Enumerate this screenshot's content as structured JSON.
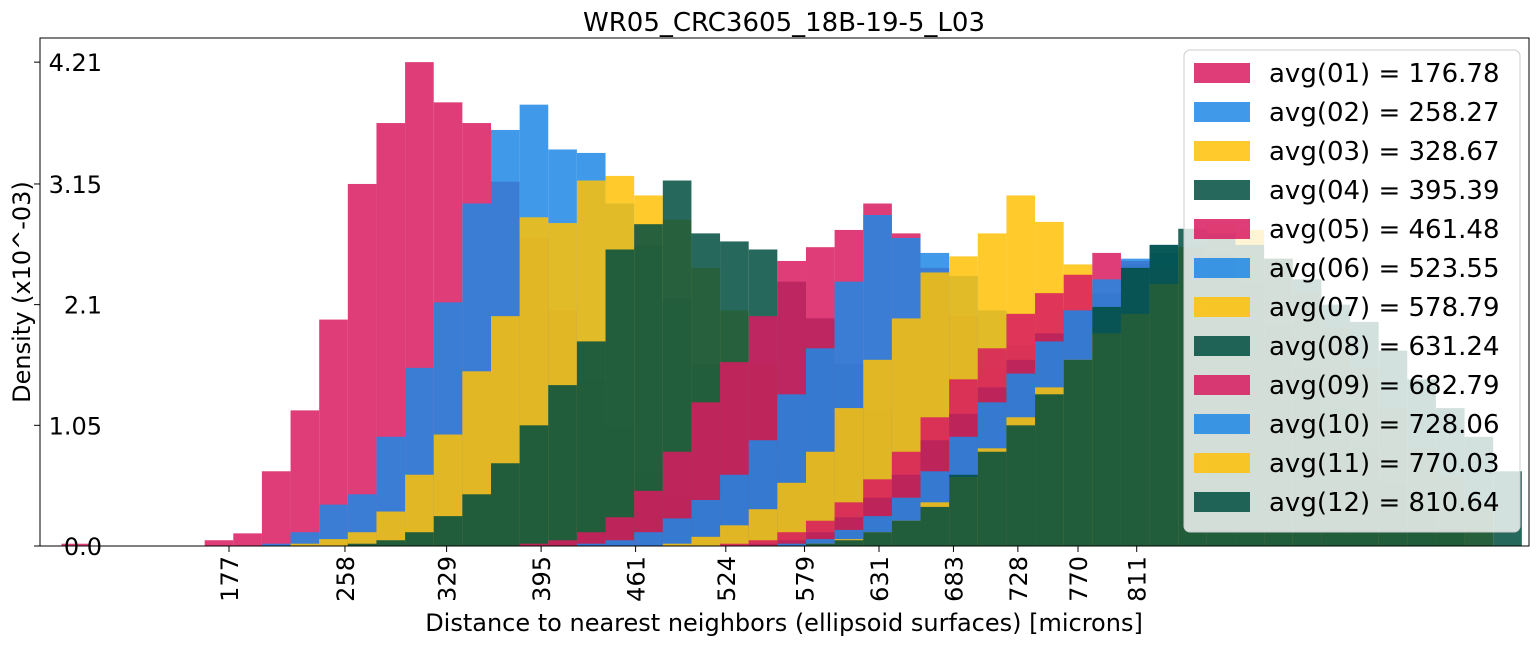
{
  "chart_data": {
    "type": "histogram",
    "title": "WR05_CRC3605_18B-19-5_L03",
    "xlabel": "Distance to nearest neighbors (ellipsoid surfaces) [microns]",
    "ylabel": "Density (x10^-03)",
    "ylim": [
      0,
      4.42
    ],
    "xlim": [
      45,
      1085
    ],
    "y_ticks": [
      0.0,
      1.05,
      2.1,
      3.15,
      4.21
    ],
    "y_tick_labels": [
      "0.0",
      "1.05",
      "2.1",
      "3.15",
      "4.21"
    ],
    "x_ticks": [
      177,
      258,
      329,
      395,
      461,
      524,
      579,
      631,
      683,
      728,
      770,
      811
    ],
    "x_tick_labels": [
      "177",
      "258",
      "329",
      "395",
      "461",
      "524",
      "579",
      "631",
      "683",
      "728",
      "770",
      "811"
    ],
    "bin_width": 20,
    "grid": false,
    "legend_position": "upper right",
    "colors": [
      "#d81b60",
      "#1e88e5",
      "#ffc107",
      "#004d40"
    ],
    "series": [
      {
        "name": "avg(01) = 176.78",
        "color": "#d81b60",
        "bins": [
          [
            60,
            0.02
          ],
          [
            160,
            0.05
          ],
          [
            180,
            0.11
          ],
          [
            200,
            0.65
          ],
          [
            220,
            1.18
          ],
          [
            240,
            1.97
          ],
          [
            260,
            3.15
          ],
          [
            280,
            3.68
          ],
          [
            300,
            4.21
          ],
          [
            320,
            3.86
          ],
          [
            340,
            3.68
          ],
          [
            360,
            3.17
          ],
          [
            380,
            2.68
          ],
          [
            400,
            2.05
          ],
          [
            420,
            1.45
          ],
          [
            440,
            1.05
          ],
          [
            460,
            0.66
          ],
          [
            480,
            0.42
          ],
          [
            500,
            0.22
          ],
          [
            520,
            0.12
          ],
          [
            540,
            0.05
          ],
          [
            560,
            0.02
          ]
        ]
      },
      {
        "name": "avg(02) = 258.27",
        "color": "#1e88e5",
        "bins": [
          [
            200,
            0.02
          ],
          [
            220,
            0.12
          ],
          [
            240,
            0.36
          ],
          [
            260,
            0.45
          ],
          [
            280,
            0.95
          ],
          [
            300,
            1.55
          ],
          [
            320,
            2.12
          ],
          [
            340,
            2.98
          ],
          [
            360,
            3.62
          ],
          [
            380,
            3.84
          ],
          [
            400,
            3.45
          ],
          [
            420,
            3.42
          ],
          [
            440,
            2.98
          ],
          [
            460,
            2.62
          ],
          [
            480,
            2.15
          ],
          [
            500,
            1.58
          ],
          [
            520,
            1.12
          ],
          [
            540,
            0.72
          ],
          [
            560,
            0.42
          ],
          [
            580,
            0.22
          ],
          [
            600,
            0.12
          ]
        ]
      },
      {
        "name": "avg(03) = 328.67",
        "color": "#ffc107",
        "bins": [
          [
            220,
            0.02
          ],
          [
            240,
            0.06
          ],
          [
            260,
            0.12
          ],
          [
            280,
            0.3
          ],
          [
            300,
            0.62
          ],
          [
            320,
            0.97
          ],
          [
            340,
            1.52
          ],
          [
            360,
            2.0
          ],
          [
            380,
            2.86
          ],
          [
            400,
            2.81
          ],
          [
            420,
            3.18
          ],
          [
            440,
            3.22
          ],
          [
            460,
            3.05
          ],
          [
            480,
            2.84
          ],
          [
            500,
            2.42
          ],
          [
            520,
            2.05
          ],
          [
            540,
            1.58
          ],
          [
            560,
            1.18
          ],
          [
            580,
            0.75
          ],
          [
            600,
            0.42
          ],
          [
            620,
            0.22
          ]
        ]
      },
      {
        "name": "avg(04) = 395.39",
        "color": "#004d40",
        "bins": [
          [
            260,
            0.02
          ],
          [
            280,
            0.05
          ],
          [
            300,
            0.12
          ],
          [
            320,
            0.26
          ],
          [
            340,
            0.45
          ],
          [
            360,
            0.72
          ],
          [
            380,
            1.05
          ],
          [
            400,
            1.4
          ],
          [
            420,
            1.78
          ],
          [
            440,
            2.58
          ],
          [
            460,
            2.8
          ],
          [
            480,
            3.18
          ],
          [
            500,
            2.72
          ],
          [
            520,
            2.65
          ],
          [
            540,
            2.58
          ],
          [
            560,
            2.3
          ],
          [
            580,
            1.98
          ],
          [
            600,
            1.58
          ],
          [
            620,
            1.18
          ],
          [
            640,
            0.78
          ],
          [
            660,
            0.42
          ],
          [
            680,
            0.2
          ]
        ]
      },
      {
        "name": "avg(05) = 461.48",
        "color": "#d81b60",
        "bins": [
          [
            380,
            0.02
          ],
          [
            400,
            0.05
          ],
          [
            420,
            0.12
          ],
          [
            440,
            0.25
          ],
          [
            460,
            0.48
          ],
          [
            480,
            0.82
          ],
          [
            500,
            1.25
          ],
          [
            520,
            1.6
          ],
          [
            540,
            2.0
          ],
          [
            560,
            2.48
          ],
          [
            580,
            2.6
          ],
          [
            600,
            2.75
          ],
          [
            620,
            2.98
          ],
          [
            640,
            2.72
          ],
          [
            660,
            2.42
          ],
          [
            680,
            2.0
          ],
          [
            700,
            1.55
          ],
          [
            720,
            1.12
          ],
          [
            740,
            0.72
          ],
          [
            760,
            0.45
          ],
          [
            780,
            0.22
          ]
        ]
      },
      {
        "name": "avg(06) = 523.55",
        "color": "#1e88e5",
        "bins": [
          [
            420,
            0.02
          ],
          [
            440,
            0.05
          ],
          [
            460,
            0.12
          ],
          [
            480,
            0.24
          ],
          [
            500,
            0.4
          ],
          [
            520,
            0.62
          ],
          [
            540,
            0.92
          ],
          [
            560,
            1.32
          ],
          [
            580,
            1.72
          ],
          [
            600,
            2.3
          ],
          [
            620,
            2.88
          ],
          [
            640,
            2.68
          ],
          [
            660,
            2.55
          ],
          [
            680,
            2.35
          ],
          [
            700,
            2.05
          ],
          [
            720,
            1.75
          ],
          [
            740,
            1.4
          ],
          [
            760,
            1.02
          ],
          [
            780,
            0.68
          ],
          [
            800,
            0.4
          ],
          [
            820,
            0.2
          ]
        ]
      },
      {
        "name": "avg(07) = 578.79",
        "color": "#ffc107",
        "bins": [
          [
            480,
            0.02
          ],
          [
            500,
            0.08
          ],
          [
            520,
            0.18
          ],
          [
            540,
            0.32
          ],
          [
            560,
            0.55
          ],
          [
            580,
            0.82
          ],
          [
            600,
            1.2
          ],
          [
            620,
            1.62
          ],
          [
            640,
            1.98
          ],
          [
            660,
            2.38
          ],
          [
            680,
            2.52
          ],
          [
            700,
            2.72
          ],
          [
            720,
            3.05
          ],
          [
            740,
            2.82
          ],
          [
            760,
            2.45
          ],
          [
            780,
            2.05
          ],
          [
            800,
            1.65
          ],
          [
            820,
            1.28
          ],
          [
            840,
            0.95
          ],
          [
            860,
            0.62
          ],
          [
            880,
            0.35
          ]
        ]
      },
      {
        "name": "avg(08) = 631.24",
        "color": "#004d40",
        "bins": [
          [
            540,
            0.02
          ],
          [
            560,
            0.05
          ],
          [
            580,
            0.12
          ],
          [
            600,
            0.25
          ],
          [
            620,
            0.42
          ],
          [
            640,
            0.62
          ],
          [
            660,
            0.92
          ],
          [
            680,
            1.15
          ],
          [
            700,
            1.38
          ],
          [
            720,
            1.62
          ],
          [
            740,
            1.85
          ],
          [
            760,
            2.05
          ],
          [
            780,
            2.2
          ],
          [
            800,
            2.45
          ],
          [
            820,
            2.55
          ],
          [
            840,
            2.6
          ],
          [
            860,
            2.55
          ],
          [
            880,
            2.28
          ],
          [
            900,
            1.92
          ],
          [
            920,
            1.55
          ],
          [
            940,
            1.15
          ],
          [
            960,
            0.82
          ],
          [
            980,
            0.55
          ],
          [
            1000,
            0.3
          ],
          [
            1020,
            0.15
          ]
        ]
      },
      {
        "name": "avg(09) = 682.79",
        "color": "#d81b60",
        "bins": [
          [
            520,
            0.02
          ],
          [
            540,
            0.05
          ],
          [
            560,
            0.12
          ],
          [
            580,
            0.22
          ],
          [
            600,
            0.38
          ],
          [
            620,
            0.58
          ],
          [
            640,
            0.82
          ],
          [
            660,
            1.12
          ],
          [
            680,
            1.45
          ],
          [
            700,
            1.72
          ],
          [
            720,
            2.02
          ],
          [
            740,
            2.2
          ],
          [
            760,
            2.36
          ],
          [
            780,
            2.55
          ],
          [
            800,
            2.48
          ],
          [
            820,
            2.42
          ],
          [
            840,
            2.38
          ],
          [
            860,
            2.12
          ],
          [
            880,
            1.8
          ],
          [
            900,
            1.45
          ],
          [
            920,
            1.05
          ],
          [
            940,
            0.72
          ],
          [
            960,
            0.45
          ],
          [
            980,
            0.22
          ]
        ]
      },
      {
        "name": "avg(10) = 728.06",
        "color": "#1e88e5",
        "bins": [
          [
            560,
            0.02
          ],
          [
            580,
            0.06
          ],
          [
            600,
            0.14
          ],
          [
            620,
            0.26
          ],
          [
            640,
            0.42
          ],
          [
            660,
            0.65
          ],
          [
            680,
            0.95
          ],
          [
            700,
            1.25
          ],
          [
            720,
            1.5
          ],
          [
            740,
            1.78
          ],
          [
            760,
            2.05
          ],
          [
            780,
            2.32
          ],
          [
            800,
            2.5
          ],
          [
            820,
            2.62
          ],
          [
            840,
            2.45
          ],
          [
            860,
            2.35
          ],
          [
            880,
            2.15
          ],
          [
            900,
            1.88
          ],
          [
            920,
            1.55
          ],
          [
            940,
            1.2
          ],
          [
            960,
            0.85
          ],
          [
            980,
            0.55
          ],
          [
            1000,
            0.3
          ]
        ]
      },
      {
        "name": "avg(11) = 770.03",
        "color": "#ffc107",
        "bins": [
          [
            580,
            0.02
          ],
          [
            600,
            0.06
          ],
          [
            620,
            0.12
          ],
          [
            640,
            0.22
          ],
          [
            660,
            0.38
          ],
          [
            680,
            0.6
          ],
          [
            700,
            0.85
          ],
          [
            720,
            1.12
          ],
          [
            740,
            1.38
          ],
          [
            760,
            1.62
          ],
          [
            780,
            1.85
          ],
          [
            800,
            2.02
          ],
          [
            820,
            2.28
          ],
          [
            840,
            2.6
          ],
          [
            860,
            2.8
          ],
          [
            880,
            2.75
          ],
          [
            900,
            2.5
          ],
          [
            920,
            2.2
          ],
          [
            940,
            1.9
          ],
          [
            960,
            1.55
          ],
          [
            980,
            1.2
          ],
          [
            1000,
            0.85
          ],
          [
            1020,
            0.6
          ],
          [
            1040,
            0.35
          ]
        ]
      },
      {
        "name": "avg(12) = 810.64",
        "color": "#004d40",
        "bins": [
          [
            580,
            0.02
          ],
          [
            600,
            0.05
          ],
          [
            620,
            0.12
          ],
          [
            640,
            0.22
          ],
          [
            660,
            0.34
          ],
          [
            680,
            0.62
          ],
          [
            700,
            0.82
          ],
          [
            720,
            1.05
          ],
          [
            740,
            1.32
          ],
          [
            760,
            1.62
          ],
          [
            780,
            2.08
          ],
          [
            800,
            2.42
          ],
          [
            820,
            2.62
          ],
          [
            840,
            2.76
          ],
          [
            860,
            2.72
          ],
          [
            880,
            2.62
          ],
          [
            900,
            2.5
          ],
          [
            920,
            2.32
          ],
          [
            940,
            2.1
          ],
          [
            960,
            1.95
          ],
          [
            980,
            1.7
          ],
          [
            1000,
            1.45
          ],
          [
            1020,
            1.2
          ],
          [
            1040,
            0.95
          ],
          [
            1060,
            0.65
          ]
        ]
      }
    ]
  }
}
